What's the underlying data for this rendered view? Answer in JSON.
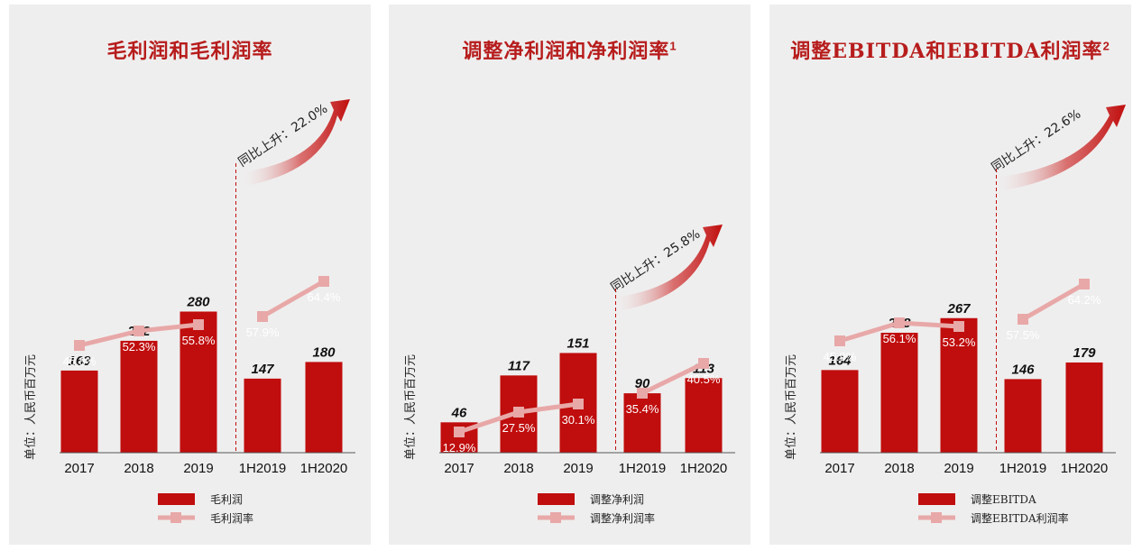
{
  "colors": {
    "bar": "#c00d0d",
    "line": "#e8a8a8",
    "marker": "#e8a8a8",
    "arrow": "#c00d0d",
    "title": "#b71c1c"
  },
  "unit_label": "单位：人民币百万元",
  "chart_data": [
    {
      "type": "bar",
      "title": "毛利润和毛利润率",
      "title_sup": "",
      "categories": [
        "2017",
        "2018",
        "2019",
        "1H2019",
        "1H2020"
      ],
      "series": [
        {
          "name": "毛利润",
          "type": "bar",
          "values": [
            163,
            222,
            280,
            147,
            180
          ]
        },
        {
          "name": "毛利润率",
          "type": "line",
          "values": [
            45.8,
            52.3,
            55.8,
            57.9,
            64.4
          ],
          "labels": [
            "45.8%",
            "52.3%",
            "55.8%",
            "57.9%",
            "64.4%"
          ],
          "connect": [
            [
              0,
              1,
              2
            ],
            [
              3,
              4
            ]
          ]
        }
      ],
      "yoy_text": "同比上升：22.0%"
    },
    {
      "type": "bar",
      "title": "调整净利润和净利润率",
      "title_sup": "1",
      "categories": [
        "2017",
        "2018",
        "2019",
        "1H2019",
        "1H2020"
      ],
      "series": [
        {
          "name": "调整净利润",
          "type": "bar",
          "values": [
            46,
            117,
            151,
            90,
            113
          ]
        },
        {
          "name": "调整净利润率",
          "type": "line",
          "values": [
            12.9,
            27.5,
            30.1,
            35.4,
            40.5
          ],
          "labels": [
            "12.9%",
            "27.5%",
            "30.1%",
            "35.4%",
            "40.5%"
          ],
          "connect": [
            [
              0,
              1,
              2
            ],
            [
              3,
              4
            ]
          ]
        }
      ],
      "yoy_text": "同比上升：25.8%"
    },
    {
      "type": "bar",
      "title": "调整EBITDA和EBITDA利润率",
      "title_sup": "2",
      "categories": [
        "2017",
        "2018",
        "2019",
        "1H2019",
        "1H2020"
      ],
      "series": [
        {
          "name": "调整EBITDA",
          "type": "bar",
          "values": [
            164,
            238,
            267,
            146,
            179
          ]
        },
        {
          "name": "调整EBITDA利润率",
          "type": "line",
          "values": [
            45.9,
            56.1,
            53.2,
            57.5,
            64.2
          ],
          "labels": [
            "45.9%",
            "56.1%",
            "53.2%",
            "57.5%",
            "64.2%"
          ],
          "connect": [
            [
              0,
              1,
              2
            ],
            [
              3,
              4
            ]
          ]
        }
      ],
      "yoy_text": "同比上升：22.6%"
    }
  ]
}
